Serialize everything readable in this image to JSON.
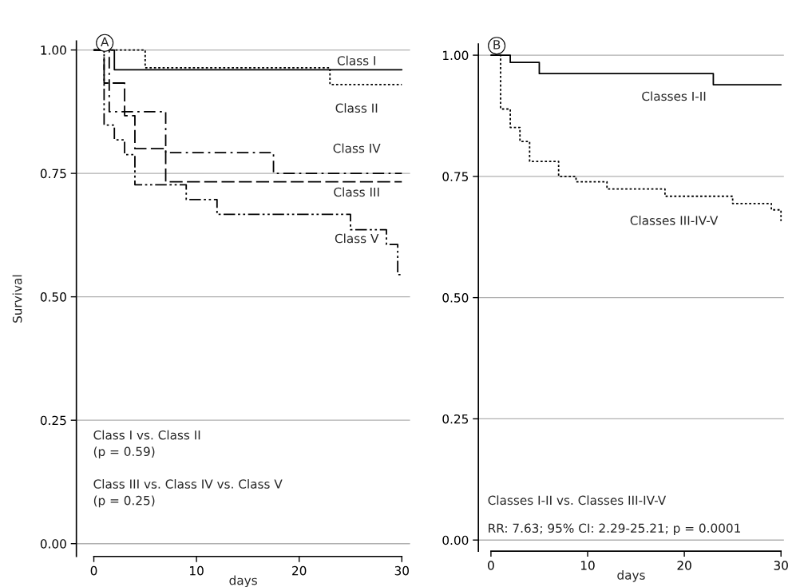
{
  "chart_data": [
    {
      "type": "step",
      "xlabel": "days",
      "ylabel": "Survival",
      "xlim": [
        -1.7,
        30.8
      ],
      "ylim": [
        -0.026,
        1.018
      ],
      "xticks": [
        0,
        10,
        20,
        30
      ],
      "yticks": [
        {
          "value": 0,
          "label": "0.00"
        },
        {
          "value": 0.25,
          "label": "0.25"
        },
        {
          "value": 0.5,
          "label": "0.50"
        },
        {
          "value": 0.75,
          "label": "0.75"
        },
        {
          "value": 1,
          "label": "1.00"
        }
      ],
      "grid": "y",
      "series": [
        {
          "color": "#000000",
          "line_style": "solid",
          "x": [
            0,
            2,
            30
          ],
          "values": [
            1.0,
            0.96,
            0.96
          ]
        },
        {
          "color": "#000000",
          "line_style": "dotted",
          "x": [
            0,
            5,
            23,
            30
          ],
          "values": [
            1.0,
            0.964,
            0.93,
            0.93
          ]
        },
        {
          "color": "#000000",
          "line_style": "dashed",
          "x": [
            0,
            1,
            3,
            4,
            7,
            30
          ],
          "values": [
            1.0,
            0.933,
            0.867,
            0.8,
            0.733,
            0.733
          ]
        },
        {
          "color": "#000000",
          "line_style": "dashdot",
          "x": [
            0,
            1.5,
            7,
            17.5,
            30
          ],
          "values": [
            1.0,
            0.875,
            0.792,
            0.75,
            0.75
          ]
        },
        {
          "color": "#000000",
          "line_style": "dashdotdot",
          "x": [
            0,
            1,
            2,
            3,
            4,
            9,
            12,
            25,
            28.5,
            29.6,
            30
          ],
          "values": [
            1.0,
            0.848,
            0.818,
            0.788,
            0.727,
            0.697,
            0.667,
            0.636,
            0.606,
            0.545,
            0.545
          ]
        }
      ],
      "annotations": [
        "A",
        "Class I",
        "Class II",
        "Class IV",
        "Class III",
        "Class V",
        "Class I vs. Class II\n(p = 0.59)",
        "Class III vs. Class IV vs. Class V\n(p = 0.25)"
      ]
    },
    {
      "type": "step",
      "xlabel": "days",
      "xlim": [
        -1.3,
        30.3
      ],
      "ylim": [
        -0.023,
        1.023
      ],
      "xticks": [
        0,
        10,
        20,
        30
      ],
      "yticks": [
        {
          "value": 0,
          "label": "0.00"
        },
        {
          "value": 0.25,
          "label": "0.25"
        },
        {
          "value": 0.5,
          "label": "0.50"
        },
        {
          "value": 0.75,
          "label": "0.75"
        },
        {
          "value": 1,
          "label": "1.00"
        }
      ],
      "grid": "y",
      "series": [
        {
          "color": "#000000",
          "line_style": "solid",
          "x": [
            0,
            2,
            5,
            23,
            30
          ],
          "values": [
            1.0,
            0.985,
            0.962,
            0.939,
            0.939
          ]
        },
        {
          "color": "#000000",
          "line_style": "dotted",
          "x": [
            0,
            1,
            2,
            3,
            4,
            7,
            8.8,
            12,
            18,
            25,
            29,
            30
          ],
          "values": [
            1.0,
            0.889,
            0.851,
            0.822,
            0.781,
            0.75,
            0.739,
            0.724,
            0.709,
            0.694,
            0.681,
            0.658
          ]
        }
      ],
      "annotations": [
        "B",
        "Classes I-II",
        "Classes III-IV-V",
        "Classes I-II vs. Classes III-IV-V",
        "RR: 7.63; 95% CI: 2.29-25.21; p = 0.0001"
      ]
    }
  ]
}
